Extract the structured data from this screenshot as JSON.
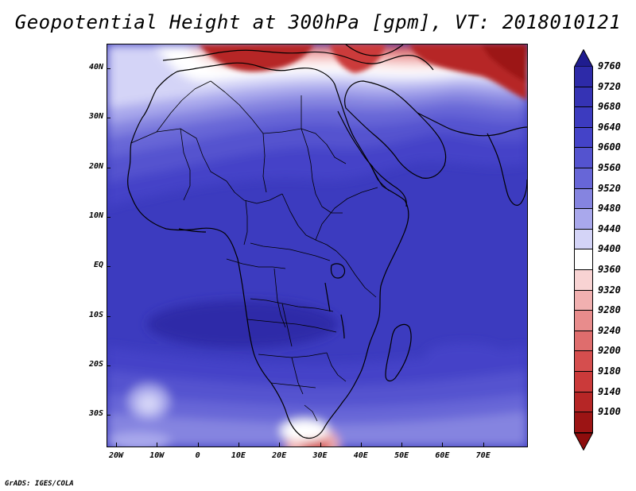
{
  "title": "Geopotential Height at 300hPa [gpm], VT: 2018010121",
  "footer": "GrADS: IGES/COLA",
  "map": {
    "lat_labels": [
      "40N",
      "30N",
      "20N",
      "10N",
      "EQ",
      "10S",
      "20S",
      "30S"
    ],
    "lon_labels": [
      "20W",
      "10W",
      "0",
      "10E",
      "20E",
      "30E",
      "40E",
      "50E",
      "60E",
      "70E"
    ],
    "coastlines": "continental outlines of Africa, Middle East and Southern Europe"
  },
  "colorbar": {
    "levels": [
      "9760",
      "9720",
      "9680",
      "9640",
      "9600",
      "9560",
      "9520",
      "9480",
      "9440",
      "9400",
      "9360",
      "9320",
      "9280",
      "9240",
      "9200",
      "9180",
      "9140",
      "9100"
    ],
    "colors": [
      "#2d2aa8",
      "#3533b4",
      "#3c3bbf",
      "#4443c8",
      "#5453cf",
      "#6766d7",
      "#8584e0",
      "#a9a8ec",
      "#d4d4f7",
      "#ffffff",
      "#f8d3d3",
      "#f1b0b0",
      "#e88c8c",
      "#df6d6d",
      "#d54e4e",
      "#cb3a3a",
      "#b62626",
      "#9c1414"
    ],
    "top_arrow_color": "#1f1c8f",
    "bottom_arrow_color": "#8e0d0d"
  }
}
